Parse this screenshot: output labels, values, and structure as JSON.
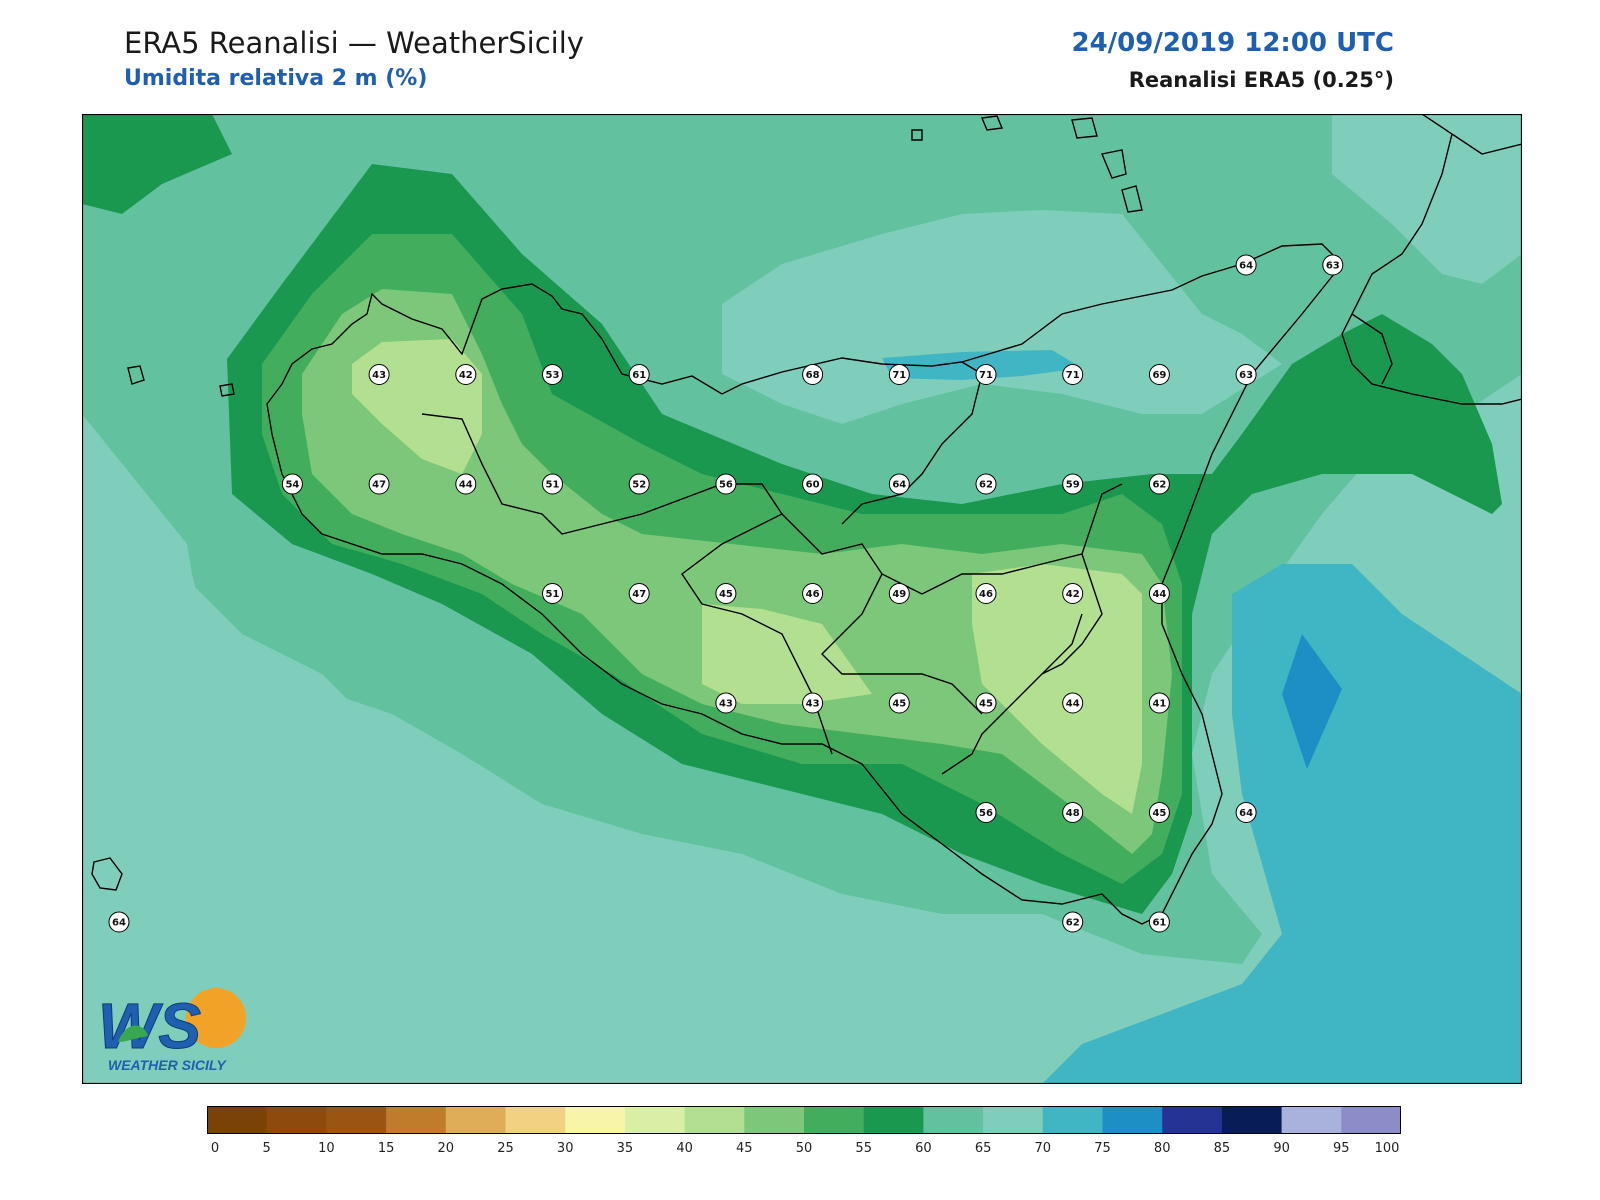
{
  "header": {
    "title": "ERA5 Reanalisi — WeatherSicily",
    "subtitle": "Umidita relativa 2 m (%)",
    "datetime": "24/09/2019 12:00 UTC",
    "source": "Reanalisi ERA5 (0.25°)"
  },
  "logo": {
    "letters": "WS",
    "brand": "WEATHER SICILY"
  },
  "colorbar": {
    "ticks": [
      "0",
      "5",
      "10",
      "15",
      "20",
      "25",
      "30",
      "35",
      "40",
      "45",
      "50",
      "55",
      "60",
      "65",
      "70",
      "75",
      "80",
      "85",
      "90",
      "95",
      "100"
    ],
    "colors": [
      "#7a4206",
      "#8d4a0c",
      "#9b5512",
      "#c07c2a",
      "#dfac58",
      "#f1d282",
      "#f8f4a8",
      "#d9efa6",
      "#b2e090",
      "#7dc77a",
      "#43ad5e",
      "#1a9850",
      "#62c2a0",
      "#7fcdbb",
      "#40b5c4",
      "#1d8fc4",
      "#253494",
      "#081d58",
      "#a8b2dc",
      "#8c8cc8"
    ]
  },
  "field_colors": {
    "c35": "#d9efa6",
    "c40": "#b2e090",
    "c45": "#7dc77a",
    "c50": "#43ad5e",
    "c55": "#1a9850",
    "c60": "#62c2a0",
    "c65": "#7fcdbb",
    "c70": "#40b5c4",
    "c75": "#1d8fc4"
  },
  "stations": [
    {
      "v": "64",
      "col": 13,
      "row": 1
    },
    {
      "v": "63",
      "col": 14,
      "row": 1
    },
    {
      "v": "43",
      "col": 3,
      "row": 2
    },
    {
      "v": "42",
      "col": 4,
      "row": 2
    },
    {
      "v": "53",
      "col": 5,
      "row": 2
    },
    {
      "v": "61",
      "col": 6,
      "row": 2
    },
    {
      "v": "68",
      "col": 8,
      "row": 2
    },
    {
      "v": "71",
      "col": 9,
      "row": 2
    },
    {
      "v": "71",
      "col": 10,
      "row": 2
    },
    {
      "v": "71",
      "col": 11,
      "row": 2
    },
    {
      "v": "69",
      "col": 12,
      "row": 2
    },
    {
      "v": "63",
      "col": 13,
      "row": 2
    },
    {
      "v": "54",
      "col": 2,
      "row": 3
    },
    {
      "v": "47",
      "col": 3,
      "row": 3
    },
    {
      "v": "44",
      "col": 4,
      "row": 3
    },
    {
      "v": "51",
      "col": 5,
      "row": 3
    },
    {
      "v": "52",
      "col": 6,
      "row": 3
    },
    {
      "v": "56",
      "col": 7,
      "row": 3
    },
    {
      "v": "60",
      "col": 8,
      "row": 3
    },
    {
      "v": "64",
      "col": 9,
      "row": 3
    },
    {
      "v": "62",
      "col": 10,
      "row": 3
    },
    {
      "v": "59",
      "col": 11,
      "row": 3
    },
    {
      "v": "62",
      "col": 12,
      "row": 3
    },
    {
      "v": "51",
      "col": 5,
      "row": 4
    },
    {
      "v": "47",
      "col": 6,
      "row": 4
    },
    {
      "v": "45",
      "col": 7,
      "row": 4
    },
    {
      "v": "46",
      "col": 8,
      "row": 4
    },
    {
      "v": "49",
      "col": 9,
      "row": 4
    },
    {
      "v": "46",
      "col": 10,
      "row": 4
    },
    {
      "v": "42",
      "col": 11,
      "row": 4
    },
    {
      "v": "44",
      "col": 12,
      "row": 4
    },
    {
      "v": "43",
      "col": 7,
      "row": 5
    },
    {
      "v": "43",
      "col": 8,
      "row": 5
    },
    {
      "v": "45",
      "col": 9,
      "row": 5
    },
    {
      "v": "45",
      "col": 10,
      "row": 5
    },
    {
      "v": "44",
      "col": 11,
      "row": 5
    },
    {
      "v": "41",
      "col": 12,
      "row": 5
    },
    {
      "v": "56",
      "col": 10,
      "row": 6
    },
    {
      "v": "48",
      "col": 11,
      "row": 6
    },
    {
      "v": "45",
      "col": 12,
      "row": 6
    },
    {
      "v": "64",
      "col": 13,
      "row": 6
    },
    {
      "v": "64",
      "col": 0,
      "row": 7
    },
    {
      "v": "62",
      "col": 11,
      "row": 7
    },
    {
      "v": "61",
      "col": 12,
      "row": 7
    }
  ]
}
